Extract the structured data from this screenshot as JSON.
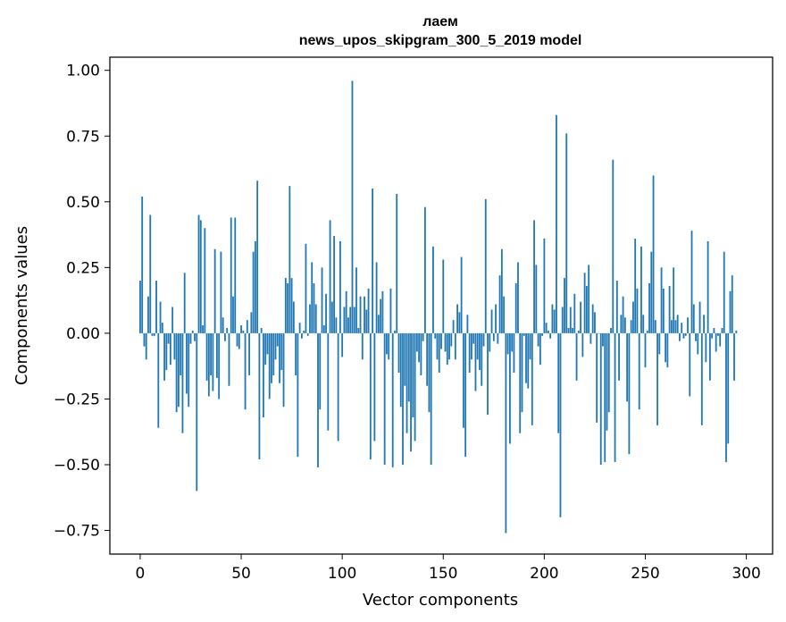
{
  "chart_data": {
    "type": "bar",
    "title": "лаем",
    "subtitle": "news_upos_skipgram_300_5_2019 model",
    "xlabel": "Vector components",
    "ylabel": "Components values",
    "xlim": [
      -15,
      313
    ],
    "ylim": [
      -0.84,
      1.05
    ],
    "xticks": [
      0,
      50,
      100,
      150,
      200,
      250,
      300
    ],
    "yticks": [
      1.0,
      0.75,
      0.5,
      0.25,
      0.0,
      -0.25,
      -0.5,
      -0.75
    ],
    "xtick_labels": [
      "0",
      "50",
      "100",
      "150",
      "200",
      "250",
      "300"
    ],
    "ytick_labels": [
      "1.00",
      "0.75",
      "0.50",
      "0.25",
      "0.00",
      "−0.25",
      "−0.50",
      "−0.75"
    ],
    "grid": false,
    "bar_color": "#1f77b4",
    "values": [
      0.2,
      0.52,
      -0.05,
      -0.1,
      0.14,
      0.45,
      -0.01,
      -0.01,
      0.2,
      -0.36,
      0.12,
      0.04,
      -0.18,
      -0.14,
      -0.04,
      -0.12,
      0.1,
      -0.1,
      -0.3,
      -0.28,
      -0.16,
      -0.38,
      0.23,
      -0.23,
      -0.28,
      -0.04,
      0.01,
      -0.03,
      -0.6,
      0.45,
      0.43,
      0.03,
      0.4,
      -0.18,
      -0.24,
      -0.16,
      -0.22,
      0.32,
      -0.17,
      -0.25,
      0.31,
      0.06,
      -0.03,
      0.02,
      -0.2,
      0.44,
      0.14,
      0.44,
      -0.05,
      -0.06,
      0.03,
      0.01,
      -0.29,
      0.05,
      -0.16,
      0.08,
      0.31,
      0.35,
      0.58,
      -0.48,
      0.02,
      -0.32,
      -0.12,
      -0.08,
      -0.25,
      -0.19,
      -0.16,
      -0.1,
      -0.05,
      -0.19,
      -0.14,
      -0.28,
      0.21,
      0.19,
      0.56,
      0.21,
      0.12,
      -0.16,
      -0.47,
      0.04,
      -0.02,
      0.01,
      0.34,
      -0.01,
      0.11,
      0.27,
      0.19,
      0.11,
      -0.51,
      -0.29,
      0.25,
      0.03,
      0.15,
      -0.37,
      0.43,
      0.12,
      0.37,
      0.06,
      -0.41,
      0.35,
      -0.09,
      0.1,
      0.16,
      0.06,
      0.1,
      0.96,
      0.1,
      0.25,
      0.02,
      0.14,
      -0.1,
      0.14,
      0.09,
      0.17,
      -0.48,
      0.55,
      -0.41,
      0.27,
      0.07,
      0.13,
      0.16,
      -0.5,
      -0.08,
      -0.1,
      0.17,
      -0.51,
      0.01,
      0.53,
      -0.15,
      -0.28,
      -0.5,
      -0.2,
      -0.38,
      -0.26,
      -0.45,
      -0.32,
      -0.41,
      -0.07,
      -0.11,
      -0.16,
      -0.03,
      0.48,
      -0.2,
      -0.3,
      -0.5,
      0.33,
      -0.02,
      -0.1,
      -0.15,
      -0.06,
      0.28,
      -0.07,
      -0.12,
      -0.1,
      -0.05,
      0.05,
      -0.1,
      0.11,
      0.08,
      0.29,
      -0.36,
      -0.47,
      0.07,
      -0.15,
      -0.1,
      -0.04,
      -0.22,
      -0.1,
      -0.14,
      -0.2,
      -0.05,
      0.51,
      -0.31,
      -0.07,
      0.09,
      -0.03,
      0.11,
      -0.04,
      0.22,
      0.32,
      0.14,
      -0.76,
      -0.08,
      -0.42,
      -0.07,
      -0.15,
      0.19,
      0.27,
      -0.38,
      -0.3,
      -0.01,
      -0.19,
      -0.21,
      -0.1,
      -0.35,
      0.43,
      0.26,
      -0.05,
      -0.12,
      -0.01,
      0.36,
      0.04,
      0.01,
      -0.02,
      0.11,
      0.09,
      0.83,
      -0.38,
      -0.7,
      0.1,
      0.21,
      0.76,
      0.02,
      0.1,
      0.02,
      0.15,
      -0.18,
      0.01,
      0.12,
      -0.09,
      0.23,
      0.18,
      0.26,
      -0.04,
      0.11,
      0.08,
      -0.34,
      0.0,
      -0.5,
      -0.05,
      -0.49,
      -0.37,
      -0.3,
      0.02,
      0.66,
      -0.49,
      0.2,
      -0.18,
      0.07,
      0.14,
      0.06,
      -0.26,
      -0.46,
      0.05,
      0.12,
      0.36,
      0.17,
      -0.29,
      0.33,
      0.07,
      -0.13,
      0.01,
      0.19,
      0.31,
      0.6,
      0.05,
      -0.35,
      -0.08,
      0.25,
      0.17,
      -0.11,
      -0.13,
      0.18,
      0.05,
      0.25,
      0.05,
      0.07,
      -0.03,
      0.04,
      -0.02,
      -0.01,
      0.06,
      -0.24,
      0.39,
      0.11,
      -0.03,
      -0.08,
      0.12,
      -0.35,
      0.07,
      -0.11,
      0.35,
      -0.18,
      -0.02,
      0.02,
      -0.07,
      -0.01,
      -0.05,
      0.02,
      0.31,
      -0.49,
      -0.42,
      0.16,
      0.22,
      -0.18,
      0.01
    ]
  }
}
